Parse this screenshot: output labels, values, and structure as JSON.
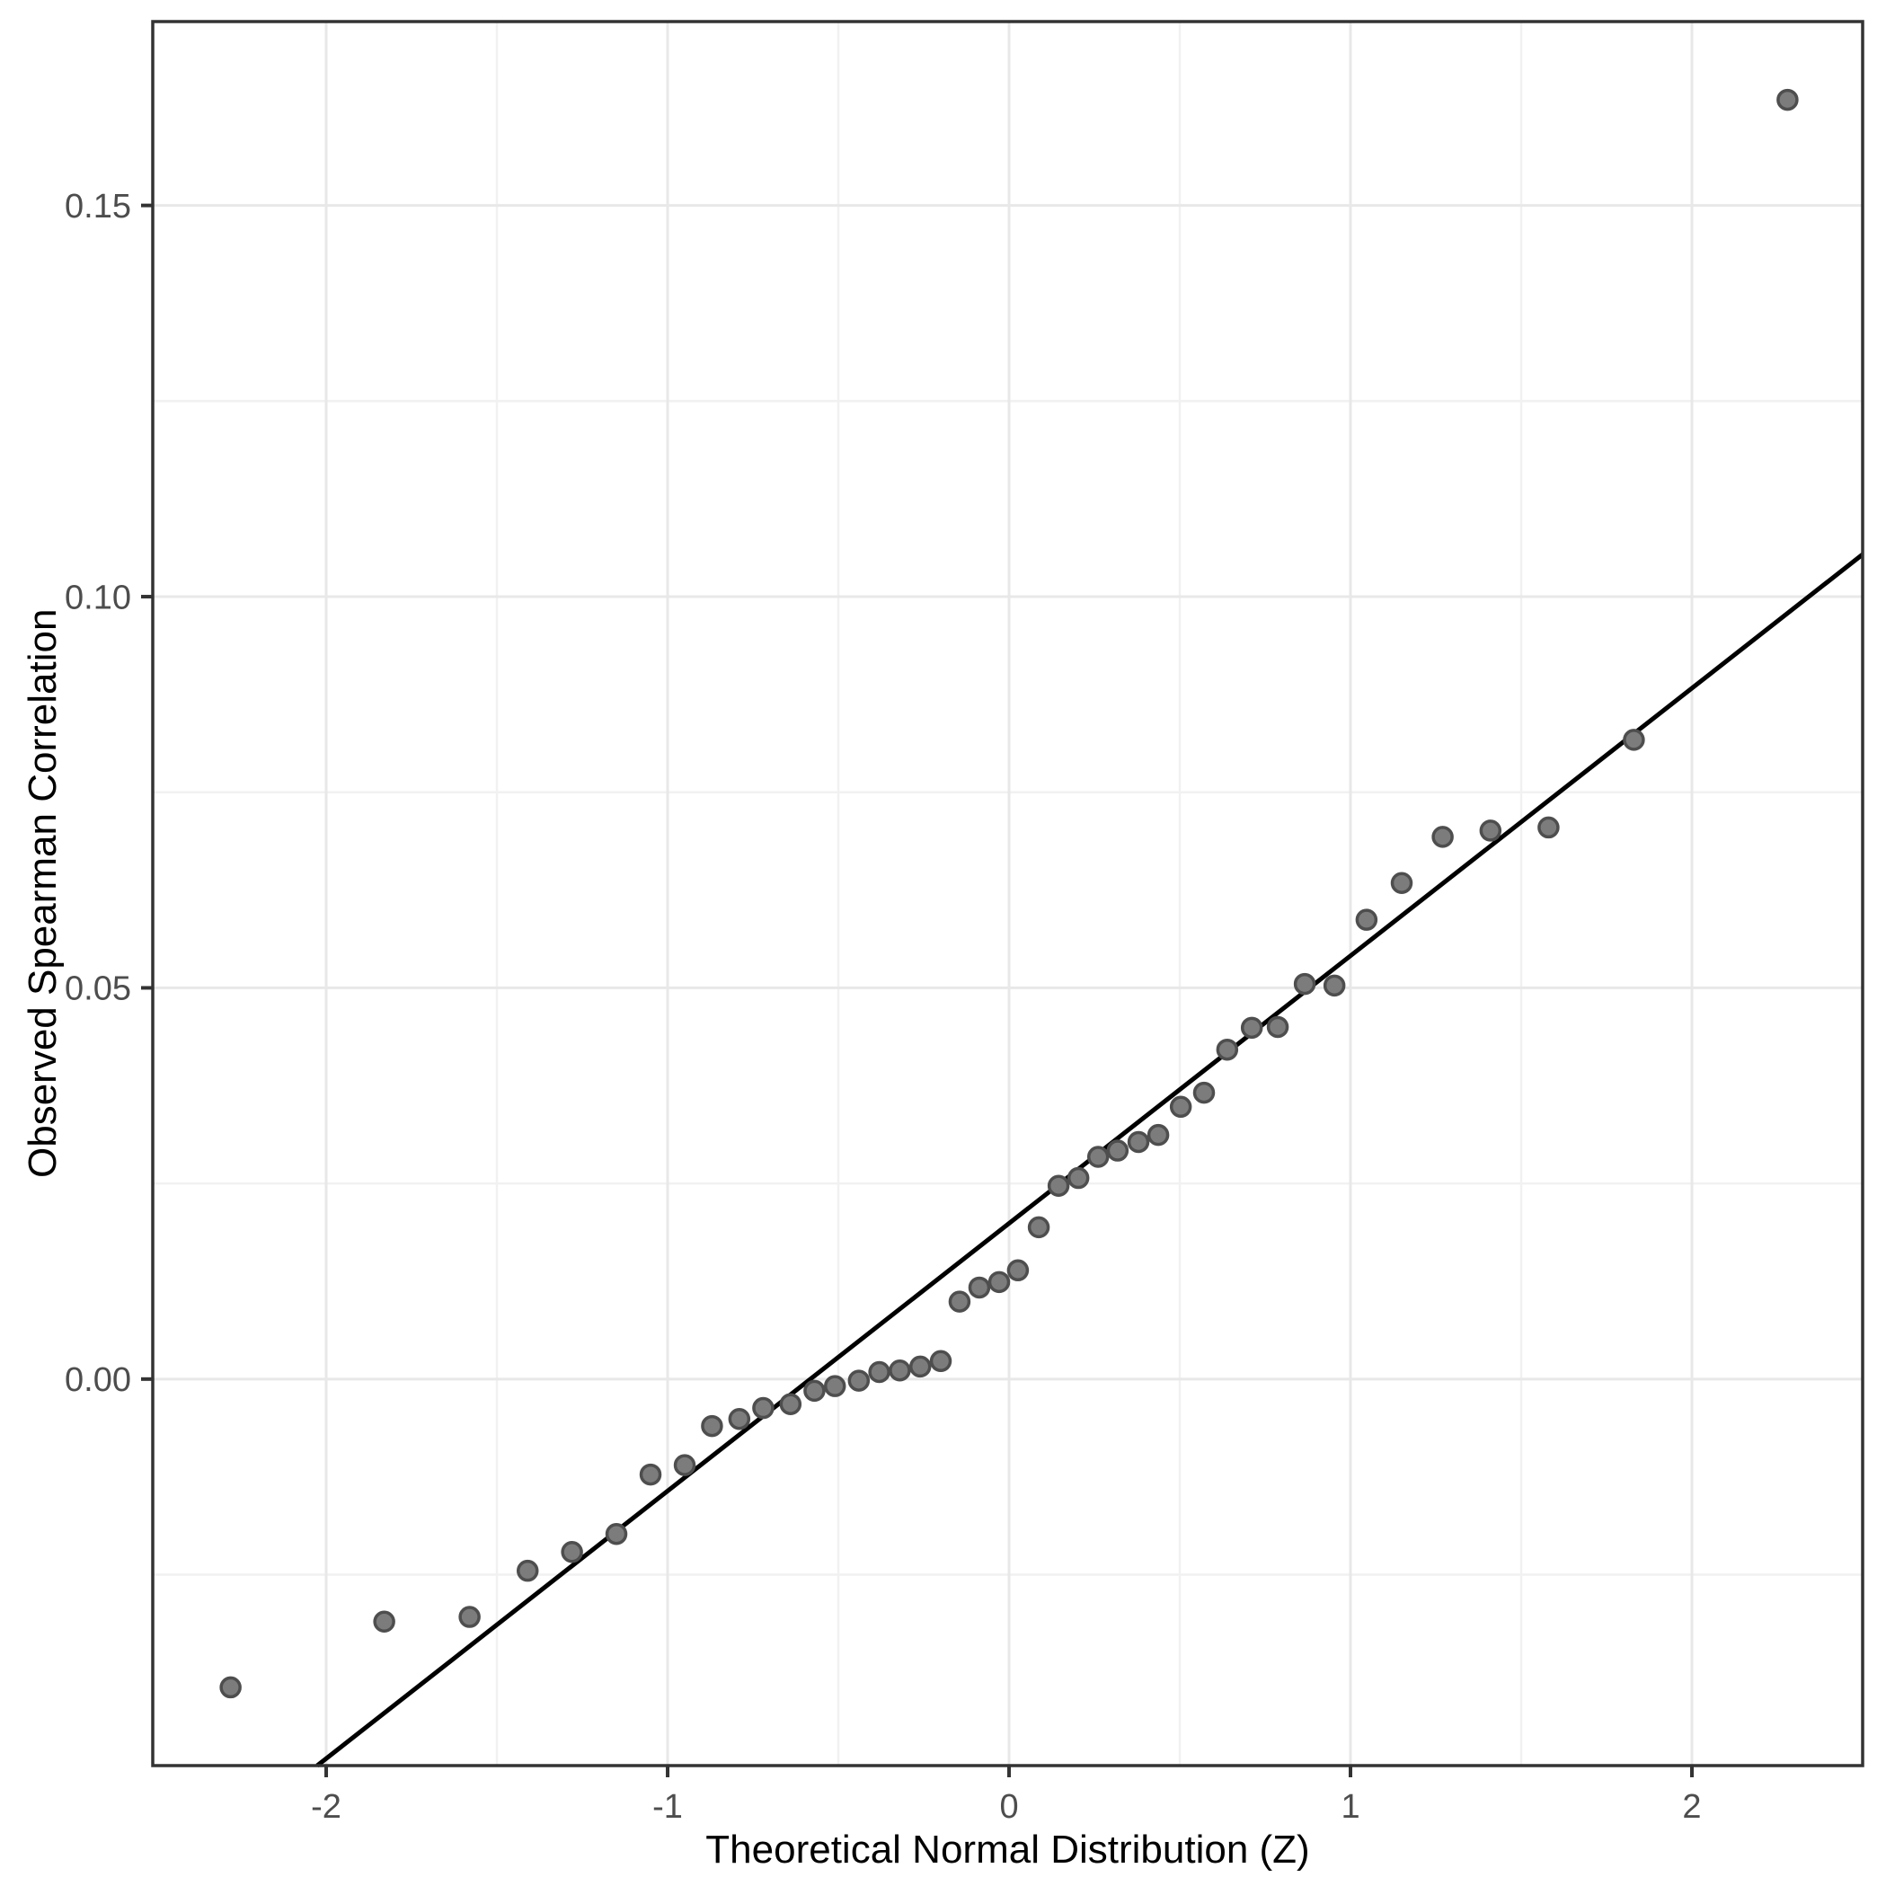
{
  "chart_data": {
    "type": "scatter",
    "title": "",
    "xlabel": "Theoretical Normal Distribution (Z)",
    "ylabel": "Observed Spearman Correlation",
    "xlim": [
      -2.508,
      2.5
    ],
    "ylim": [
      -0.0494,
      0.1735
    ],
    "grid": "on",
    "legend": "none",
    "x_ticks": {
      "values": [
        -2,
        -1,
        0,
        1,
        2
      ],
      "labels": [
        "-2",
        "-1",
        "0",
        "1",
        "2"
      ]
    },
    "y_ticks": {
      "values": [
        0.0,
        0.05,
        0.1,
        0.15
      ],
      "labels": [
        "0.00",
        "0.05",
        "0.10",
        "0.15"
      ]
    },
    "x_minor_ticks": [
      -1.5,
      -0.5,
      0.5,
      1.5
    ],
    "y_minor_ticks": [
      -0.025,
      0.025,
      0.075,
      0.125
    ],
    "ref_line": {
      "intercept": 0.0199,
      "slope": 0.0342
    },
    "points": [
      [
        -2.28,
        -0.0394
      ],
      [
        -1.83,
        -0.031
      ],
      [
        -1.58,
        -0.0304
      ],
      [
        -1.41,
        -0.0245
      ],
      [
        -1.28,
        -0.0221
      ],
      [
        -1.15,
        -0.0198
      ],
      [
        -1.05,
        -0.0122
      ],
      [
        -0.95,
        -0.011
      ],
      [
        -0.87,
        -0.006
      ],
      [
        -0.79,
        -0.0051
      ],
      [
        -0.72,
        -0.0037
      ],
      [
        -0.64,
        -0.0032
      ],
      [
        -0.57,
        -0.0015
      ],
      [
        -0.51,
        -0.0009
      ],
      [
        -0.44,
        -0.0002
      ],
      [
        -0.38,
        0.0009
      ],
      [
        -0.32,
        0.0011
      ],
      [
        -0.26,
        0.0016
      ],
      [
        -0.2,
        0.0023
      ],
      [
        -0.145,
        0.0099
      ],
      [
        -0.087,
        0.0117
      ],
      [
        -0.029,
        0.0124
      ],
      [
        0.026,
        0.0139
      ],
      [
        0.087,
        0.0194
      ],
      [
        0.145,
        0.0247
      ],
      [
        0.203,
        0.0257
      ],
      [
        0.261,
        0.0284
      ],
      [
        0.318,
        0.0292
      ],
      [
        0.379,
        0.0303
      ],
      [
        0.437,
        0.0312
      ],
      [
        0.503,
        0.0348
      ],
      [
        0.571,
        0.0366
      ],
      [
        0.639,
        0.0421
      ],
      [
        0.711,
        0.0449
      ],
      [
        0.787,
        0.045
      ],
      [
        0.866,
        0.0505
      ],
      [
        0.953,
        0.0503
      ],
      [
        1.047,
        0.0587
      ],
      [
        1.15,
        0.0634
      ],
      [
        1.27,
        0.0693
      ],
      [
        1.41,
        0.0701
      ],
      [
        1.58,
        0.0705
      ],
      [
        1.83,
        0.0817
      ],
      [
        2.28,
        0.1635
      ]
    ],
    "colors": {
      "background": "#ffffff",
      "grid_major": "#e8e8e8",
      "grid_minor": "#f1f1f1",
      "panel_border": "#333333",
      "tick": "#333333",
      "tick_label": "#4d4d4d",
      "axis_title": "#000000",
      "point_fill": "#7c7c7c",
      "point_stroke": "#4e4e4e",
      "ref_line": "#000000"
    }
  }
}
